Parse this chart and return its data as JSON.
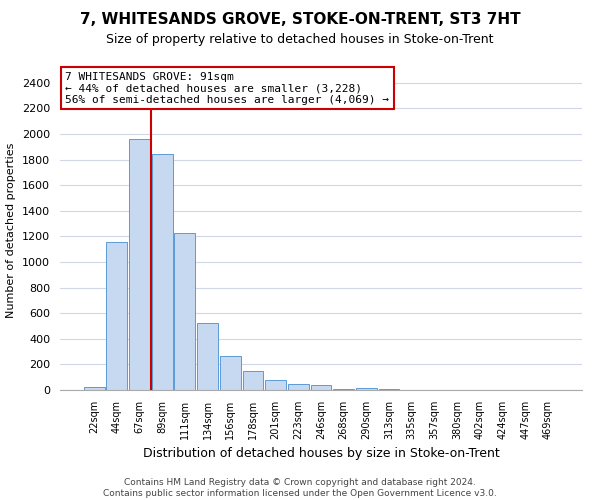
{
  "title": "7, WHITESANDS GROVE, STOKE-ON-TRENT, ST3 7HT",
  "subtitle": "Size of property relative to detached houses in Stoke-on-Trent",
  "xlabel": "Distribution of detached houses by size in Stoke-on-Trent",
  "ylabel": "Number of detached properties",
  "bar_labels": [
    "22sqm",
    "44sqm",
    "67sqm",
    "89sqm",
    "111sqm",
    "134sqm",
    "156sqm",
    "178sqm",
    "201sqm",
    "223sqm",
    "246sqm",
    "268sqm",
    "290sqm",
    "313sqm",
    "335sqm",
    "357sqm",
    "380sqm",
    "402sqm",
    "424sqm",
    "447sqm",
    "469sqm"
  ],
  "bar_values": [
    25,
    1155,
    1960,
    1840,
    1225,
    520,
    265,
    148,
    80,
    50,
    38,
    8,
    12,
    5,
    3,
    2,
    1,
    1,
    0,
    0,
    0
  ],
  "bar_color": "#c6d9f0",
  "bar_edge_color": "#5b9bd5",
  "vline_color": "#cc0000",
  "annotation_line1": "7 WHITESANDS GROVE: 91sqm",
  "annotation_line2": "← 44% of detached houses are smaller (3,228)",
  "annotation_line3": "56% of semi-detached houses are larger (4,069) →",
  "annotation_box_color": "#ffffff",
  "annotation_box_edge": "#cc0000",
  "ylim": [
    0,
    2500
  ],
  "yticks": [
    0,
    200,
    400,
    600,
    800,
    1000,
    1200,
    1400,
    1600,
    1800,
    2000,
    2200,
    2400
  ],
  "footer_line1": "Contains HM Land Registry data © Crown copyright and database right 2024.",
  "footer_line2": "Contains public sector information licensed under the Open Government Licence v3.0.",
  "background_color": "#ffffff",
  "grid_color": "#d0d8e8"
}
